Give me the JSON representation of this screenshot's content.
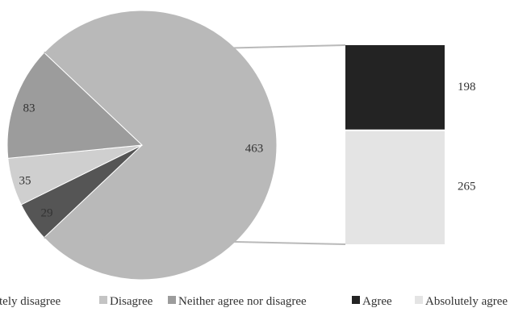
{
  "chart_data": {
    "type": "pie",
    "title": "",
    "slices": [
      {
        "name": "Absolutely disagree",
        "value": 463,
        "color": "#b9b9b9",
        "label": "463"
      },
      {
        "name": "Disagree",
        "value": 29,
        "color": "#555555",
        "label": "29"
      },
      {
        "name": "Neither agree nor disagree",
        "value": 35,
        "color": "#cfcfcf",
        "label": "35"
      },
      {
        "name": "Agree",
        "value": 83,
        "color": "#9c9c9c",
        "label": "83"
      }
    ],
    "breakdown": {
      "of_slice": "Absolutely disagree",
      "type": "stacked-bar",
      "segments": [
        {
          "name": "Agree",
          "value": 198,
          "color": "#232323",
          "label": "198"
        },
        {
          "name": "Absolutely agree",
          "value": 265,
          "color": "#e4e4e4",
          "label": "265"
        }
      ]
    },
    "legend": {
      "position": "bottom",
      "items": [
        {
          "label": "Absolutely disagree",
          "color": "#555555"
        },
        {
          "label": "Disagree",
          "color": "#c4c4c4"
        },
        {
          "label": "Neither agree nor disagree",
          "color": "#9c9c9c"
        },
        {
          "label": "Agree",
          "color": "#232323"
        },
        {
          "label": "Absolutely agree",
          "color": "#e4e4e4"
        }
      ]
    },
    "legend_display_text": [
      "tely disagree",
      "Disagree",
      "Neither agree nor disagree",
      "Agree",
      "Absolutely agree"
    ]
  }
}
